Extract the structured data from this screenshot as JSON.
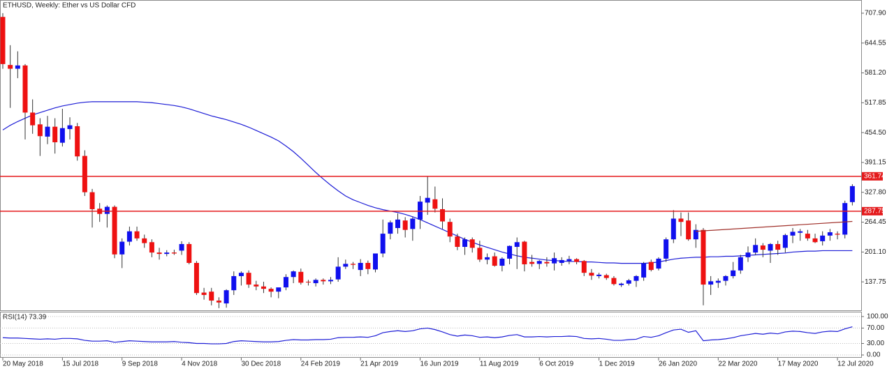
{
  "chart_data": [
    {
      "type": "candlestick",
      "title": "ETHUSD, Weekly:  Ether vs US Dollar CFD",
      "categories": [
        "20 May 2018",
        null,
        null,
        null,
        null,
        null,
        null,
        null,
        "15 Jul 2018",
        null,
        null,
        null,
        null,
        null,
        null,
        null,
        "9 Sep 2018",
        null,
        null,
        null,
        null,
        null,
        null,
        null,
        "4 Nov 2018",
        null,
        null,
        null,
        null,
        null,
        null,
        null,
        "30 Dec 2018",
        null,
        null,
        null,
        null,
        null,
        null,
        null,
        "24 Feb 2019",
        null,
        null,
        null,
        null,
        null,
        null,
        null,
        "21 Apr 2019",
        null,
        null,
        null,
        null,
        null,
        null,
        null,
        "16 Jun 2019",
        null,
        null,
        null,
        null,
        null,
        null,
        null,
        "11 Aug 2019",
        null,
        null,
        null,
        null,
        null,
        null,
        null,
        "6 Oct 2019",
        null,
        null,
        null,
        null,
        null,
        null,
        null,
        "1 Dec 2019",
        null,
        null,
        null,
        null,
        null,
        null,
        null,
        "26 Jan 2020",
        null,
        null,
        null,
        null,
        null,
        null,
        null,
        "22 Mar 2020",
        null,
        null,
        null,
        null,
        null,
        null,
        null,
        "17 May 2020",
        null,
        null,
        null,
        null,
        null,
        null,
        null,
        "12 Jul 2020",
        null,
        null
      ],
      "open": [
        700,
        598,
        590,
        597,
        497,
        472,
        446,
        467,
        433,
        462,
        468,
        405,
        328,
        293,
        282,
        297,
        196,
        223,
        245,
        230,
        222,
        200,
        197,
        200,
        204,
        218,
        178,
        115,
        117,
        98,
        92,
        120,
        150,
        157,
        132,
        128,
        123,
        117,
        126,
        148,
        159,
        138,
        135,
        142,
        139,
        143,
        170,
        176,
        163,
        178,
        164,
        198,
        240,
        252,
        268,
        250,
        270,
        306,
        313,
        292,
        265,
        234,
        212,
        228,
        210,
        185,
        192,
        172,
        187,
        212,
        223,
        180,
        176,
        180,
        177,
        178,
        182,
        186,
        182,
        157,
        150,
        152,
        146,
        131,
        134,
        140,
        147,
        180,
        166,
        187,
        228,
        272,
        268,
        228,
        248,
        132,
        136,
        140,
        150,
        162,
        190,
        200,
        215,
        204,
        218,
        210,
        236,
        242,
        240,
        230,
        224,
        236,
        240,
        238,
        307
      ],
      "high": [
        708,
        640,
        627,
        600,
        525,
        485,
        490,
        485,
        505,
        487,
        475,
        417,
        335,
        305,
        300,
        300,
        230,
        255,
        255,
        238,
        228,
        210,
        205,
        206,
        224,
        222,
        182,
        125,
        125,
        105,
        122,
        160,
        160,
        162,
        140,
        138,
        126,
        124,
        154,
        162,
        166,
        142,
        145,
        145,
        148,
        190,
        185,
        180,
        186,
        183,
        196,
        270,
        268,
        283,
        275,
        275,
        320,
        362,
        340,
        315,
        272,
        240,
        232,
        232,
        225,
        198,
        200,
        190,
        215,
        232,
        225,
        195,
        184,
        190,
        200,
        190,
        193,
        188,
        184,
        165,
        157,
        155,
        150,
        136,
        144,
        152,
        180,
        185,
        190,
        232,
        290,
        285,
        285,
        260,
        252,
        150,
        145,
        152,
        180,
        195,
        213,
        230,
        220,
        220,
        225,
        240,
        252,
        250,
        248,
        240,
        245,
        250,
        245,
        310,
        345
      ],
      "low": [
        590,
        507,
        570,
        440,
        452,
        405,
        430,
        410,
        425,
        440,
        395,
        320,
        253,
        265,
        253,
        188,
        167,
        215,
        225,
        210,
        190,
        185,
        192,
        195,
        195,
        175,
        110,
        100,
        88,
        82,
        83,
        110,
        130,
        125,
        120,
        114,
        105,
        103,
        120,
        135,
        132,
        130,
        128,
        132,
        133,
        138,
        165,
        165,
        150,
        154,
        158,
        190,
        228,
        240,
        232,
        225,
        250,
        280,
        285,
        250,
        222,
        205,
        195,
        200,
        180,
        175,
        170,
        160,
        175,
        165,
        160,
        170,
        165,
        170,
        162,
        172,
        175,
        175,
        150,
        142,
        145,
        142,
        130,
        127,
        130,
        127,
        140,
        160,
        162,
        180,
        220,
        235,
        225,
        210,
        88,
        110,
        125,
        130,
        145,
        155,
        180,
        195,
        190,
        178,
        195,
        200,
        220,
        225,
        225,
        220,
        215,
        225,
        228,
        230,
        300
      ],
      "close": [
        600,
        590,
        597,
        497,
        470,
        447,
        467,
        434,
        464,
        470,
        404,
        328,
        292,
        282,
        297,
        196,
        223,
        245,
        230,
        220,
        200,
        197,
        200,
        198,
        218,
        178,
        114,
        110,
        98,
        94,
        120,
        150,
        157,
        132,
        128,
        123,
        117,
        126,
        148,
        160,
        136,
        137,
        142,
        139,
        142,
        170,
        176,
        174,
        178,
        165,
        198,
        240,
        264,
        270,
        248,
        272,
        308,
        316,
        293,
        266,
        234,
        212,
        228,
        210,
        185,
        190,
        172,
        187,
        214,
        222,
        175,
        176,
        182,
        177,
        188,
        184,
        186,
        180,
        157,
        151,
        153,
        146,
        133,
        134,
        141,
        150,
        177,
        163,
        187,
        228,
        272,
        265,
        228,
        248,
        132,
        139,
        140,
        150,
        162,
        190,
        200,
        216,
        206,
        218,
        206,
        237,
        244,
        245,
        230,
        222,
        236,
        243,
        238,
        305,
        341
      ],
      "up_color": "#1010ee",
      "down_color": "#ee1111",
      "wick_color": "#333333",
      "moving_average": {
        "color": "#1c1cd6",
        "values": [
          460,
          470,
          478,
          485,
          492,
          497,
          502,
          507,
          511,
          514,
          517,
          519,
          520,
          520,
          520,
          520,
          520,
          520,
          520,
          519,
          518,
          516,
          514,
          512,
          509,
          505,
          500,
          495,
          490,
          486,
          482,
          477,
          472,
          466,
          459,
          452,
          445,
          437,
          426,
          414,
          400,
          385,
          370,
          356,
          343,
          331,
          320,
          312,
          306,
          300,
          295,
          291,
          288,
          285,
          281,
          276,
          270,
          263,
          256,
          249,
          242,
          235,
          228,
          222,
          216,
          211,
          206,
          201,
          197,
          193,
          190,
          188,
          186,
          184,
          183,
          182,
          181,
          181,
          180,
          180,
          179,
          178,
          178,
          177,
          177,
          177,
          177,
          178,
          180,
          183,
          186,
          188,
          189,
          190,
          190,
          191,
          191,
          192,
          192,
          193,
          194,
          195,
          196,
          197,
          198,
          199,
          201,
          202,
          203,
          203,
          204,
          204,
          204,
          204,
          204
        ]
      },
      "horizontal_lines": [
        {
          "value": 361.74,
          "color": "#e41a1c"
        },
        {
          "value": 287.75,
          "color": "#e41a1c"
        }
      ],
      "trend_line": {
        "color": "#a0302a",
        "start": [
          93,
          245
        ],
        "end": [
          114,
          266
        ]
      },
      "ylim": [
        77.35,
        735.9
      ],
      "yticks": [
        {
          "value": 707.9,
          "label": "707.90"
        },
        644.55,
        {
          "value": 581.2,
          "label": "581.20"
        },
        517.85,
        {
          "value": 454.5,
          "label": "454.50"
        },
        391.15,
        {
          "value": 327.8,
          "label": "327.80"
        },
        264.45,
        {
          "value": 201.1,
          "label": "201.10"
        },
        137.75
      ]
    },
    {
      "type": "line",
      "title": "RSI(14) 73.39",
      "color": "#1c1cd6",
      "values": [
        45,
        44,
        44,
        43,
        42,
        41,
        42,
        41,
        43,
        43,
        42,
        38,
        36,
        36,
        37,
        33,
        35,
        37,
        36,
        35,
        34,
        34,
        34,
        35,
        33,
        32,
        30,
        30,
        29,
        29,
        30,
        35,
        37,
        36,
        35,
        34,
        34,
        35,
        38,
        40,
        39,
        39,
        40,
        40,
        41,
        45,
        46,
        46,
        47,
        46,
        50,
        58,
        61,
        63,
        61,
        63,
        68,
        70,
        66,
        60,
        53,
        49,
        52,
        50,
        46,
        47,
        45,
        47,
        51,
        53,
        47,
        47,
        48,
        47,
        48,
        48,
        49,
        48,
        43,
        42,
        43,
        41,
        38,
        38,
        40,
        41,
        48,
        46,
        50,
        58,
        65,
        67,
        59,
        63,
        37,
        39,
        40,
        42,
        45,
        50,
        53,
        56,
        54,
        57,
        55,
        60,
        62,
        61,
        58,
        56,
        60,
        62,
        61,
        68,
        73.39
      ],
      "ylim": [
        -5.4,
        110.7
      ],
      "yticks": [
        {
          "value": 100,
          "label": "100.00"
        },
        {
          "value": 70,
          "label": "70.00"
        },
        {
          "value": 30,
          "label": "30.00"
        },
        {
          "value": 0,
          "label": "0.00"
        }
      ],
      "grid": true
    }
  ]
}
